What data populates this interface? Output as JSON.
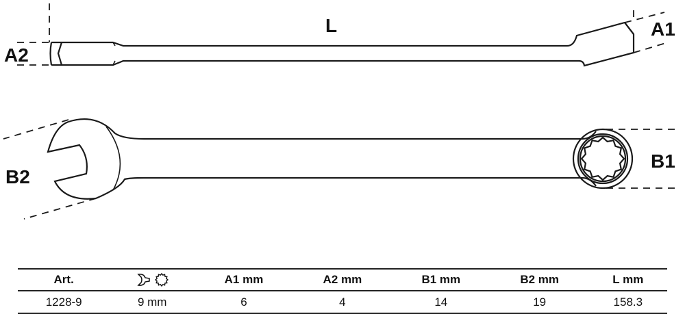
{
  "diagram": {
    "labels": {
      "L": "L",
      "A1": "A1",
      "A2": "A2",
      "B1": "B1",
      "B2": "B2"
    },
    "line_color": "#1a1a1a"
  },
  "table": {
    "headers": [
      "Art.",
      "",
      "A1  mm",
      "A2  mm",
      "B1  mm",
      "B2  mm",
      "L  mm"
    ],
    "header_icons": [
      "open-end-wrench-icon",
      "twelve-point-ring-icon"
    ],
    "rows": [
      [
        "1228-9",
        "9 mm",
        "6",
        "4",
        "14",
        "19",
        "158.3"
      ]
    ]
  }
}
